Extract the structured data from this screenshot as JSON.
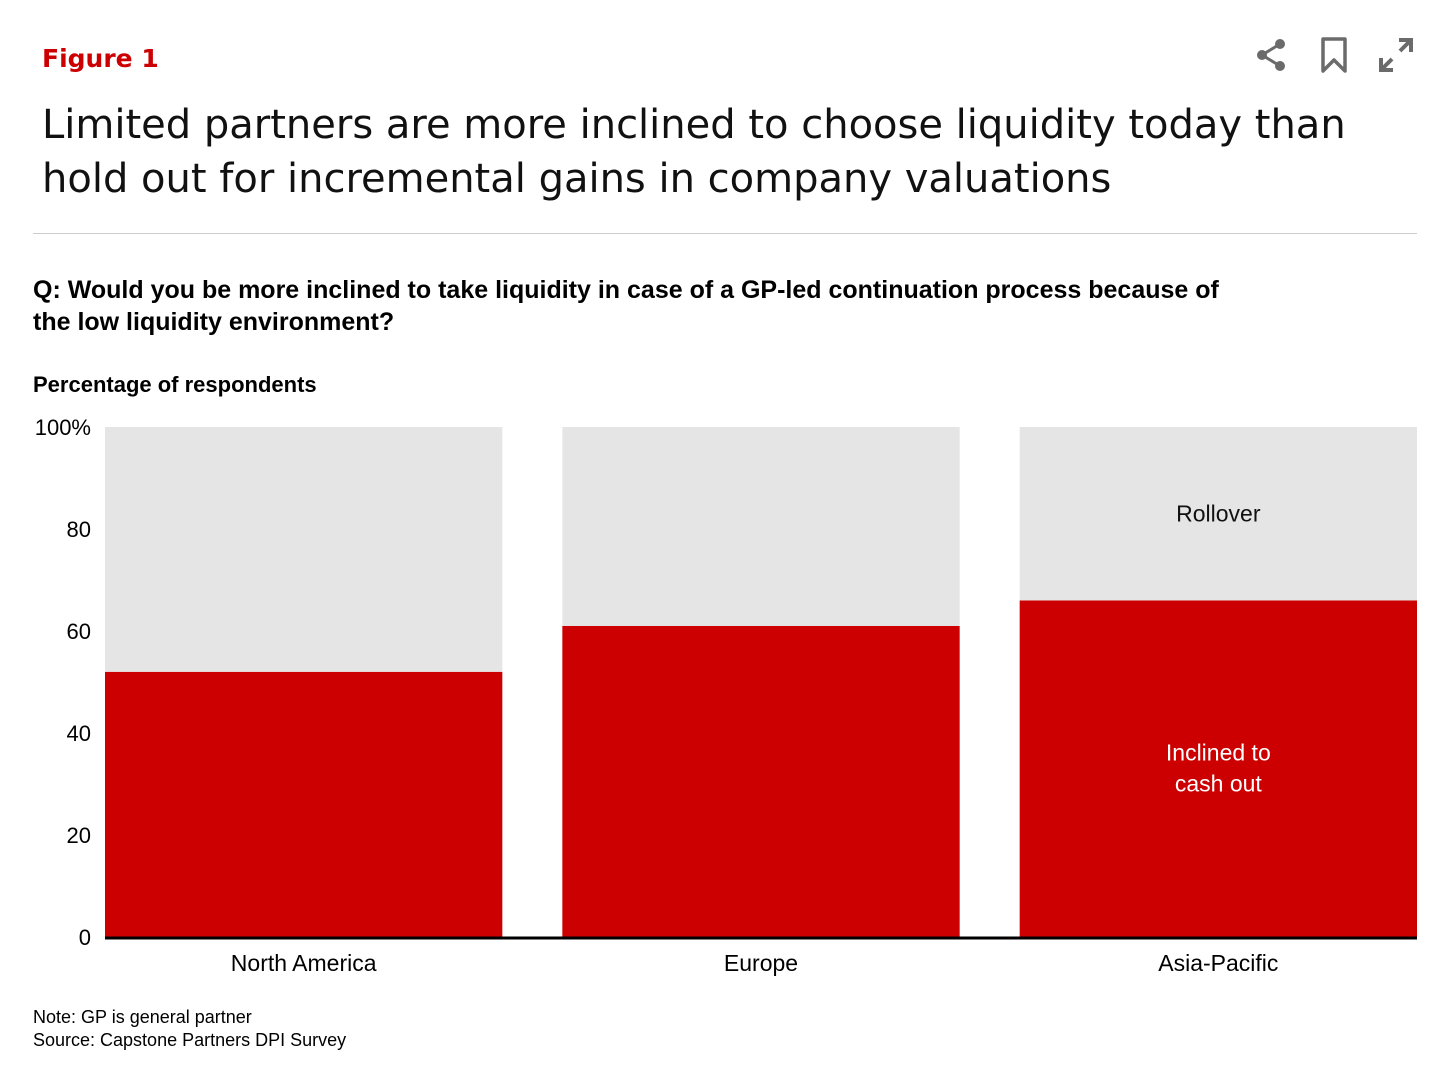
{
  "header": {
    "figure_label": "Figure 1",
    "title": "Limited partners are more inclined to choose liquidity today than hold out for incremental gains in company valuations"
  },
  "toolbar": {
    "icons": [
      "share-icon",
      "bookmark-icon",
      "expand-icon"
    ]
  },
  "question": "Q: Would you be more inclined to take liquidity in case of a GP-led continuation process because of the low liquidity environment?",
  "chart_data": {
    "type": "bar",
    "stacked": true,
    "title": "",
    "ylabel": "Percentage of respondents",
    "xlabel": "",
    "ylim": [
      0,
      100
    ],
    "yticks": [
      {
        "v": 0,
        "label": "0"
      },
      {
        "v": 20,
        "label": "20"
      },
      {
        "v": 40,
        "label": "40"
      },
      {
        "v": 60,
        "label": "60"
      },
      {
        "v": 80,
        "label": "80"
      },
      {
        "v": 100,
        "label": "100%"
      }
    ],
    "categories": [
      "North America",
      "Europe",
      "Asia-Pacific"
    ],
    "series": [
      {
        "name": "Inclined to cash out",
        "label_lines": [
          "Inclined to",
          "cash out"
        ],
        "color": "#cc0000",
        "values": [
          52,
          61,
          66
        ]
      },
      {
        "name": "Rollover",
        "label_lines": [
          "Rollover"
        ],
        "color": "#e5e5e5",
        "values": [
          48,
          39,
          34
        ]
      }
    ],
    "grid": false
  },
  "notes": {
    "note": "Note: GP is general partner",
    "source": "Source: Capstone Partners DPI Survey"
  }
}
